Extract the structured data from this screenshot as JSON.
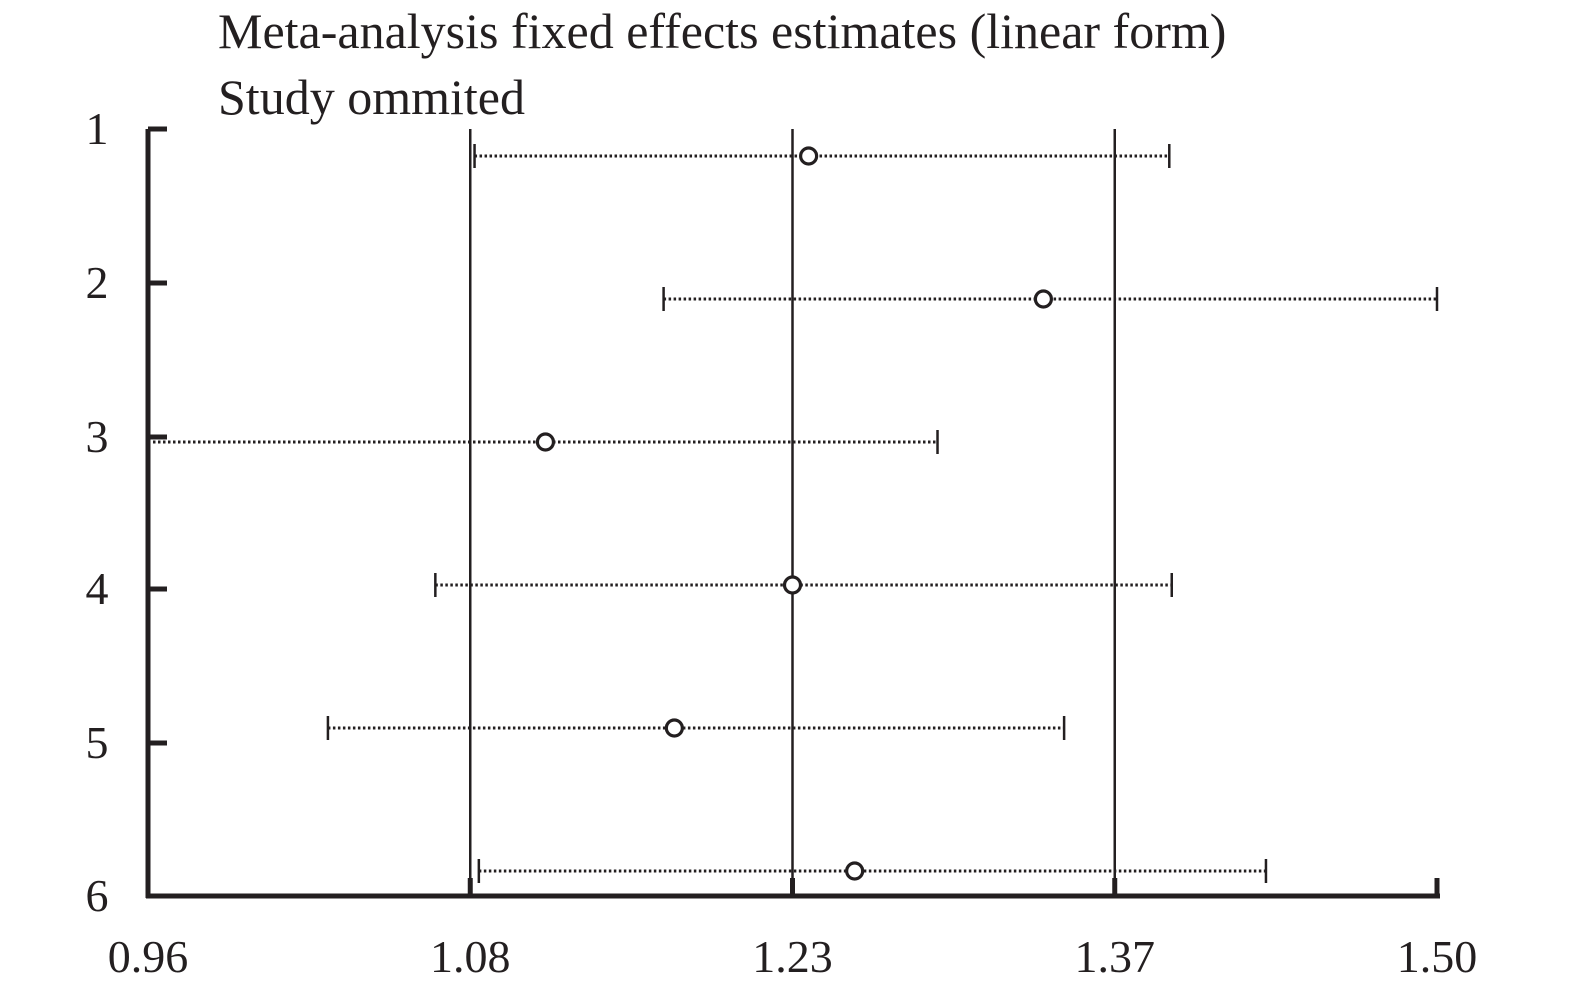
{
  "chart_data": {
    "type": "forest",
    "title": "Meta-analysis fixed effects estimates (linear form)",
    "subtitle": "Study ommited",
    "studies": [
      "1",
      "2",
      "3",
      "4",
      "5",
      "6"
    ],
    "estimates": [
      1.237,
      1.339,
      1.115,
      1.23,
      1.175,
      1.257
    ],
    "ci_lower": [
      1.082,
      1.17,
      0.96,
      1.067,
      1.027,
      1.084
    ],
    "ci_upper": [
      1.392,
      1.508,
      1.293,
      1.393,
      1.348,
      1.431
    ],
    "xticks": [
      0.96,
      1.08,
      1.23,
      1.37,
      1.5
    ],
    "xtick_labels": [
      "0.96",
      "1.08",
      "1.23",
      "1.37",
      "1.50"
    ],
    "xlim": [
      0.96,
      1.5
    ],
    "reference_lines": [
      1.08,
      1.23,
      1.37
    ],
    "grid": false,
    "legend": "none"
  },
  "colors": {
    "ink": "#231f20",
    "marker_fill": "#ffffff"
  }
}
